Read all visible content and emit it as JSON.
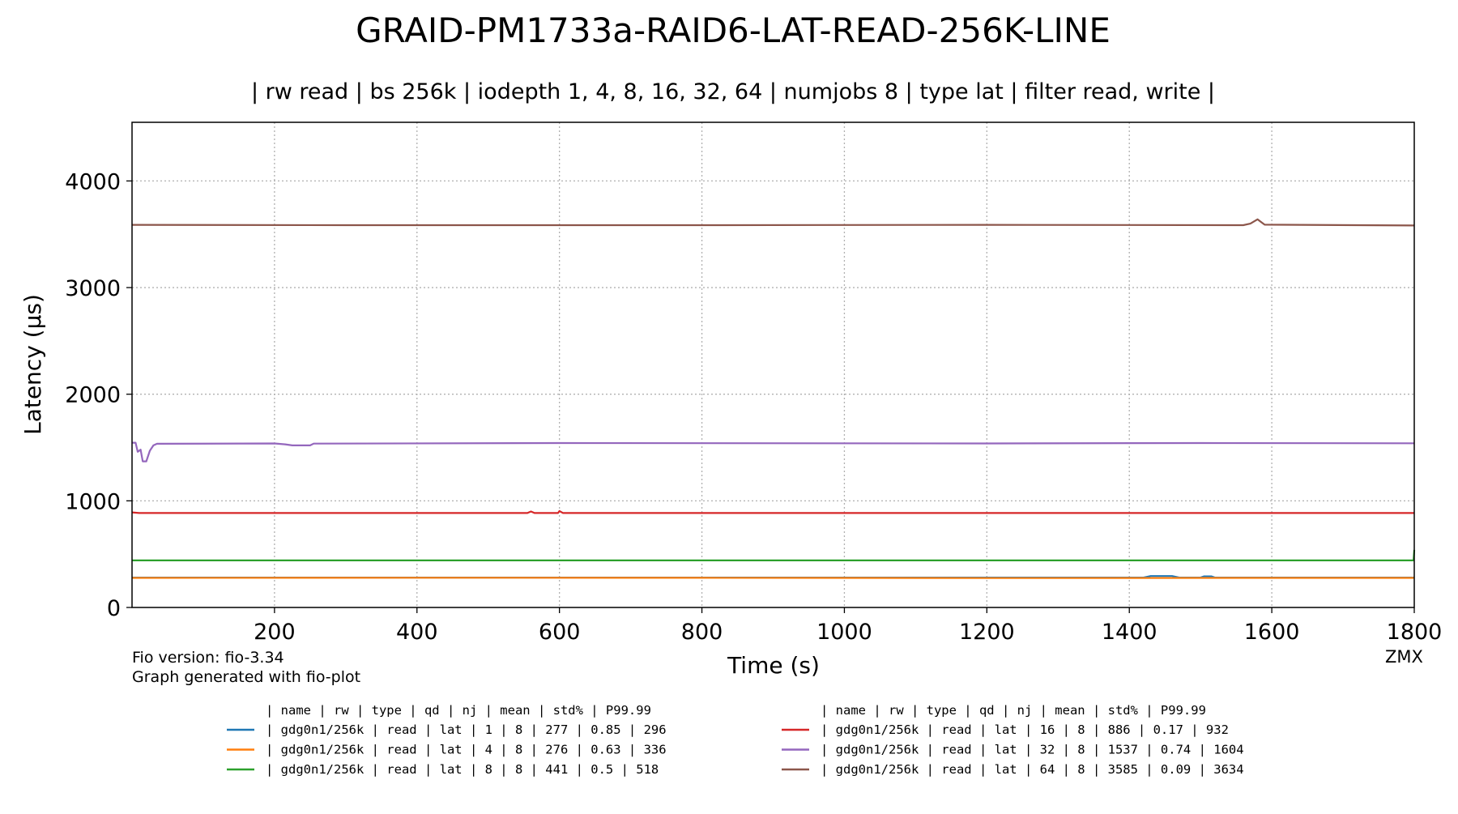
{
  "chart_data": {
    "type": "line",
    "title": "GRAID-PM1733a-RAID6-LAT-READ-256K-LINE",
    "subtitle": "| rw read | bs 256k | iodepth 1, 4, 8, 16, 32, 64 | numjobs 8 | type lat | filter read, write |",
    "xlabel": "Time (s)",
    "ylabel": "Latency (µs)",
    "xlim": [
      0,
      1800
    ],
    "ylim": [
      0,
      4550
    ],
    "x_ticks": [
      200,
      400,
      600,
      800,
      1000,
      1200,
      1400,
      1600,
      1800
    ],
    "y_ticks": [
      0,
      1000,
      2000,
      3000,
      4000
    ],
    "grid": true,
    "series": [
      {
        "color": "#1f77b4",
        "points": [
          [
            0,
            280
          ],
          [
            1420,
            280
          ],
          [
            1430,
            295
          ],
          [
            1460,
            295
          ],
          [
            1470,
            280
          ],
          [
            1500,
            280
          ],
          [
            1505,
            292
          ],
          [
            1515,
            292
          ],
          [
            1520,
            280
          ],
          [
            1800,
            280
          ]
        ]
      },
      {
        "color": "#ff7f0e",
        "points": [
          [
            0,
            277
          ],
          [
            400,
            279
          ],
          [
            800,
            278
          ],
          [
            1200,
            276
          ],
          [
            1600,
            277
          ],
          [
            1800,
            277
          ]
        ]
      },
      {
        "color": "#2ca02c",
        "points": [
          [
            0,
            441
          ],
          [
            1799,
            441
          ],
          [
            1800,
            540
          ]
        ]
      },
      {
        "color": "#d62728",
        "points": [
          [
            0,
            892
          ],
          [
            10,
            886
          ],
          [
            555,
            886
          ],
          [
            560,
            900
          ],
          [
            565,
            886
          ],
          [
            598,
            886
          ],
          [
            600,
            905
          ],
          [
            605,
            886
          ],
          [
            1800,
            886
          ]
        ]
      },
      {
        "color": "#9467bd",
        "points": [
          [
            0,
            1545
          ],
          [
            5,
            1545
          ],
          [
            8,
            1460
          ],
          [
            12,
            1480
          ],
          [
            15,
            1370
          ],
          [
            20,
            1370
          ],
          [
            25,
            1470
          ],
          [
            30,
            1520
          ],
          [
            35,
            1535
          ],
          [
            200,
            1538
          ],
          [
            215,
            1530
          ],
          [
            225,
            1520
          ],
          [
            250,
            1520
          ],
          [
            255,
            1537
          ],
          [
            600,
            1542
          ],
          [
            1200,
            1538
          ],
          [
            1500,
            1542
          ],
          [
            1800,
            1540
          ]
        ]
      },
      {
        "color": "#8c564b",
        "points": [
          [
            0,
            3588
          ],
          [
            300,
            3585
          ],
          [
            800,
            3585
          ],
          [
            1200,
            3588
          ],
          [
            1560,
            3585
          ],
          [
            1570,
            3600
          ],
          [
            1580,
            3640
          ],
          [
            1585,
            3615
          ],
          [
            1590,
            3590
          ],
          [
            1800,
            3582
          ]
        ]
      }
    ],
    "legend_headers": [
      "| name         | rw    | type | qd | nj | mean | std% | P99.99",
      "| name         | rw    | type | qd | nj | mean | std% | P99.99"
    ],
    "legend_entries": [
      {
        "color": "#1f77b4",
        "text": "|  gdg0n1/256k |  read |  lat |  1 |  8 |  277 | 0.85 |  296"
      },
      {
        "color": "#ff7f0e",
        "text": "|  gdg0n1/256k |  read |  lat |  4 |  8 |  276 | 0.63 |  336"
      },
      {
        "color": "#2ca02c",
        "text": "|  gdg0n1/256k |  read |  lat |  8 |  8 |  441 |  0.5 |  518"
      },
      {
        "color": "#d62728",
        "text": "|  gdg0n1/256k |  read |  lat | 16 |  8 |  886 | 0.17 |  932"
      },
      {
        "color": "#9467bd",
        "text": "|  gdg0n1/256k |  read |  lat | 32 |  8 | 1537 | 0.74 | 1604"
      },
      {
        "color": "#8c564b",
        "text": "|  gdg0n1/256k |  read |  lat | 64 |  8 | 3585 | 0.09 | 3634"
      }
    ]
  },
  "footer": {
    "fio_version": "Fio version: fio-3.34",
    "generated": "Graph generated with fio-plot",
    "signature": "ZMX"
  }
}
